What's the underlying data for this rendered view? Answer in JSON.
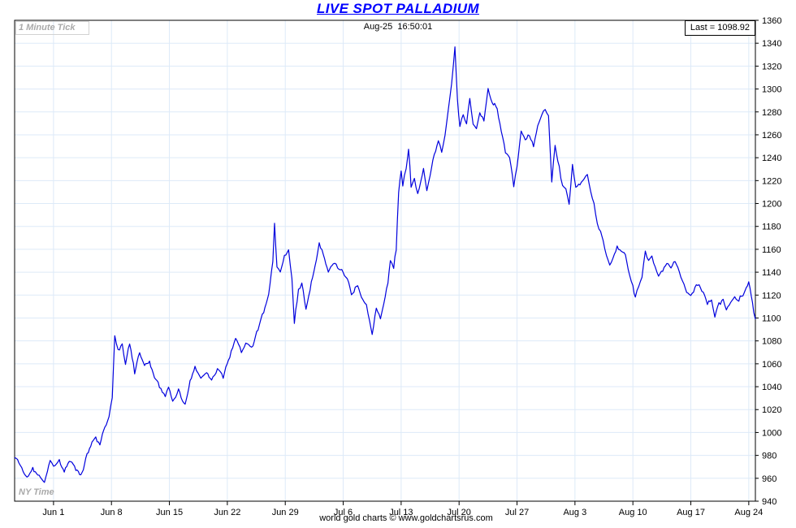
{
  "title": "LIVE SPOT PALLADIUM",
  "header": {
    "tick_interval_label": "1 Minute Tick",
    "timestamp": "Aug-25  16:50:01",
    "last_label": "Last = 1098.92"
  },
  "footer": {
    "timezone_label": "NY Time",
    "credit": "world gold charts © www.goldchartsrus.com"
  },
  "colors": {
    "title": "#0000ff",
    "line": "#0000dd",
    "grid": "#ddeaf8",
    "axis": "#000000",
    "muted_gray": "#a9a9a9"
  },
  "chart_data": {
    "type": "line",
    "title": "LIVE SPOT PALLADIUM",
    "series_name": "Spot Palladium price (USD/oz), 1-minute ticks, NY Time",
    "last_value": 1098.92,
    "as_of": "Aug-25 16:50:01",
    "ylim": [
      940,
      1360
    ],
    "y_tick_step": 20,
    "x_domain_days": [
      0,
      89.5
    ],
    "grid": true,
    "x_ticks": [
      {
        "label": "Jun 1",
        "day": 4.7
      },
      {
        "label": "Jun 8",
        "day": 11.7
      },
      {
        "label": "Jun 15",
        "day": 18.7
      },
      {
        "label": "Jun 22",
        "day": 25.7
      },
      {
        "label": "Jun 29",
        "day": 32.7
      },
      {
        "label": "Jul 6",
        "day": 39.7
      },
      {
        "label": "Jul 13",
        "day": 46.7
      },
      {
        "label": "Jul 20",
        "day": 53.7
      },
      {
        "label": "Jul 27",
        "day": 60.7
      },
      {
        "label": "Aug 3",
        "day": 67.7
      },
      {
        "label": "Aug 10",
        "day": 74.7
      },
      {
        "label": "Aug 17",
        "day": 81.7
      },
      {
        "label": "Aug 24",
        "day": 88.7
      }
    ],
    "points": [
      [
        0,
        978
      ],
      [
        0.7,
        971
      ],
      [
        1.5,
        961
      ],
      [
        2.2,
        969
      ],
      [
        2.8,
        962
      ],
      [
        3.6,
        957
      ],
      [
        4.3,
        975
      ],
      [
        4.7,
        970
      ],
      [
        5.4,
        976
      ],
      [
        6.0,
        966
      ],
      [
        6.6,
        975
      ],
      [
        7.4,
        967
      ],
      [
        8.0,
        963
      ],
      [
        8.6,
        978
      ],
      [
        9.2,
        988
      ],
      [
        9.8,
        996
      ],
      [
        10.3,
        989
      ],
      [
        10.9,
        1004
      ],
      [
        11.4,
        1014
      ],
      [
        11.8,
        1030
      ],
      [
        12.1,
        1085
      ],
      [
        12.5,
        1072
      ],
      [
        13.0,
        1078
      ],
      [
        13.4,
        1060
      ],
      [
        13.9,
        1078
      ],
      [
        14.5,
        1052
      ],
      [
        15.1,
        1070
      ],
      [
        15.7,
        1058
      ],
      [
        16.3,
        1062
      ],
      [
        16.9,
        1048
      ],
      [
        17.5,
        1040
      ],
      [
        18.2,
        1032
      ],
      [
        18.6,
        1040
      ],
      [
        19.1,
        1028
      ],
      [
        19.8,
        1038
      ],
      [
        20.6,
        1024
      ],
      [
        21.2,
        1045
      ],
      [
        21.8,
        1058
      ],
      [
        22.5,
        1048
      ],
      [
        23.2,
        1052
      ],
      [
        23.8,
        1046
      ],
      [
        24.5,
        1055
      ],
      [
        25.2,
        1048
      ],
      [
        26.0,
        1066
      ],
      [
        26.7,
        1082
      ],
      [
        27.4,
        1070
      ],
      [
        28.1,
        1078
      ],
      [
        28.8,
        1075
      ],
      [
        29.4,
        1090
      ],
      [
        30.1,
        1105
      ],
      [
        30.7,
        1120
      ],
      [
        31.2,
        1150
      ],
      [
        31.4,
        1182
      ],
      [
        31.7,
        1145
      ],
      [
        32.1,
        1140
      ],
      [
        32.6,
        1155
      ],
      [
        33.1,
        1160
      ],
      [
        33.5,
        1135
      ],
      [
        33.8,
        1096
      ],
      [
        34.3,
        1125
      ],
      [
        34.7,
        1131
      ],
      [
        35.2,
        1108
      ],
      [
        35.7,
        1125
      ],
      [
        36.3,
        1145
      ],
      [
        36.8,
        1165
      ],
      [
        37.3,
        1155
      ],
      [
        37.9,
        1140
      ],
      [
        38.5,
        1148
      ],
      [
        39.2,
        1143
      ],
      [
        39.7,
        1140
      ],
      [
        40.2,
        1135
      ],
      [
        40.7,
        1120
      ],
      [
        41.3,
        1128
      ],
      [
        41.9,
        1118
      ],
      [
        42.5,
        1112
      ],
      [
        42.9,
        1098
      ],
      [
        43.2,
        1085
      ],
      [
        43.7,
        1108
      ],
      [
        44.2,
        1100
      ],
      [
        44.6,
        1113
      ],
      [
        45.1,
        1130
      ],
      [
        45.4,
        1150
      ],
      [
        45.8,
        1143
      ],
      [
        46.1,
        1160
      ],
      [
        46.4,
        1210
      ],
      [
        46.7,
        1228
      ],
      [
        46.9,
        1215
      ],
      [
        47.3,
        1230
      ],
      [
        47.6,
        1248
      ],
      [
        47.9,
        1215
      ],
      [
        48.3,
        1222
      ],
      [
        48.7,
        1208
      ],
      [
        49.1,
        1220
      ],
      [
        49.4,
        1230
      ],
      [
        49.8,
        1212
      ],
      [
        50.2,
        1225
      ],
      [
        50.7,
        1242
      ],
      [
        51.2,
        1255
      ],
      [
        51.6,
        1245
      ],
      [
        52.0,
        1260
      ],
      [
        52.4,
        1282
      ],
      [
        52.8,
        1305
      ],
      [
        53.2,
        1337
      ],
      [
        53.5,
        1290
      ],
      [
        53.8,
        1268
      ],
      [
        54.2,
        1278
      ],
      [
        54.6,
        1270
      ],
      [
        55.0,
        1292
      ],
      [
        55.4,
        1270
      ],
      [
        55.8,
        1265
      ],
      [
        56.2,
        1280
      ],
      [
        56.7,
        1272
      ],
      [
        57.2,
        1300
      ],
      [
        57.7,
        1288
      ],
      [
        58.3,
        1282
      ],
      [
        58.8,
        1262
      ],
      [
        59.3,
        1245
      ],
      [
        59.8,
        1240
      ],
      [
        60.3,
        1215
      ],
      [
        60.7,
        1232
      ],
      [
        61.2,
        1264
      ],
      [
        61.7,
        1255
      ],
      [
        62.2,
        1260
      ],
      [
        62.7,
        1250
      ],
      [
        63.2,
        1268
      ],
      [
        63.7,
        1278
      ],
      [
        64.1,
        1282
      ],
      [
        64.5,
        1276
      ],
      [
        64.9,
        1218
      ],
      [
        65.3,
        1250
      ],
      [
        65.8,
        1232
      ],
      [
        66.2,
        1215
      ],
      [
        66.6,
        1212
      ],
      [
        67.0,
        1200
      ],
      [
        67.4,
        1234
      ],
      [
        67.8,
        1215
      ],
      [
        68.3,
        1217
      ],
      [
        68.8,
        1222
      ],
      [
        69.2,
        1226
      ],
      [
        69.6,
        1210
      ],
      [
        70.0,
        1200
      ],
      [
        70.4,
        1182
      ],
      [
        70.8,
        1175
      ],
      [
        71.1,
        1168
      ],
      [
        71.5,
        1155
      ],
      [
        71.9,
        1146
      ],
      [
        72.3,
        1152
      ],
      [
        72.8,
        1163
      ],
      [
        73.3,
        1158
      ],
      [
        73.8,
        1156
      ],
      [
        74.3,
        1138
      ],
      [
        74.7,
        1128
      ],
      [
        75.0,
        1118
      ],
      [
        75.4,
        1128
      ],
      [
        75.8,
        1135
      ],
      [
        76.2,
        1158
      ],
      [
        76.6,
        1150
      ],
      [
        77.0,
        1155
      ],
      [
        77.4,
        1145
      ],
      [
        77.8,
        1136
      ],
      [
        78.3,
        1140
      ],
      [
        78.8,
        1147
      ],
      [
        79.3,
        1144
      ],
      [
        79.8,
        1150
      ],
      [
        80.3,
        1140
      ],
      [
        80.7,
        1133
      ],
      [
        81.2,
        1122
      ],
      [
        81.7,
        1120
      ],
      [
        82.2,
        1126
      ],
      [
        82.7,
        1129
      ],
      [
        83.2,
        1122
      ],
      [
        83.7,
        1112
      ],
      [
        84.2,
        1115
      ],
      [
        84.6,
        1101
      ],
      [
        85.1,
        1113
      ],
      [
        85.6,
        1116
      ],
      [
        86.0,
        1107
      ],
      [
        86.5,
        1113
      ],
      [
        87.0,
        1118
      ],
      [
        87.5,
        1115
      ],
      [
        88.0,
        1120
      ],
      [
        88.4,
        1126
      ],
      [
        88.7,
        1132
      ],
      [
        89.0,
        1120
      ],
      [
        89.3,
        1105
      ],
      [
        89.5,
        1098.92
      ]
    ]
  }
}
